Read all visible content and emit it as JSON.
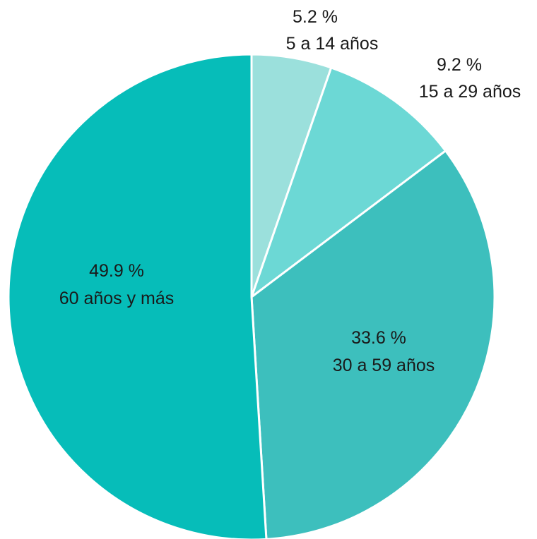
{
  "chart_data": {
    "type": "pie",
    "categories": [
      "5 a 14 años",
      "15 a 29 años",
      "30 a 59 años",
      "60 años y más"
    ],
    "values": [
      5.2,
      9.2,
      33.6,
      49.9
    ],
    "value_labels": [
      "5.2 %",
      "9.2 %",
      "33.6 %",
      "49.9 %"
    ],
    "colors": [
      "#9be0dc",
      "#6cd8d5",
      "#3dbfbd",
      "#06bdb9"
    ],
    "start_angle": "12 o'clock, clockwise",
    "legend": "none"
  }
}
